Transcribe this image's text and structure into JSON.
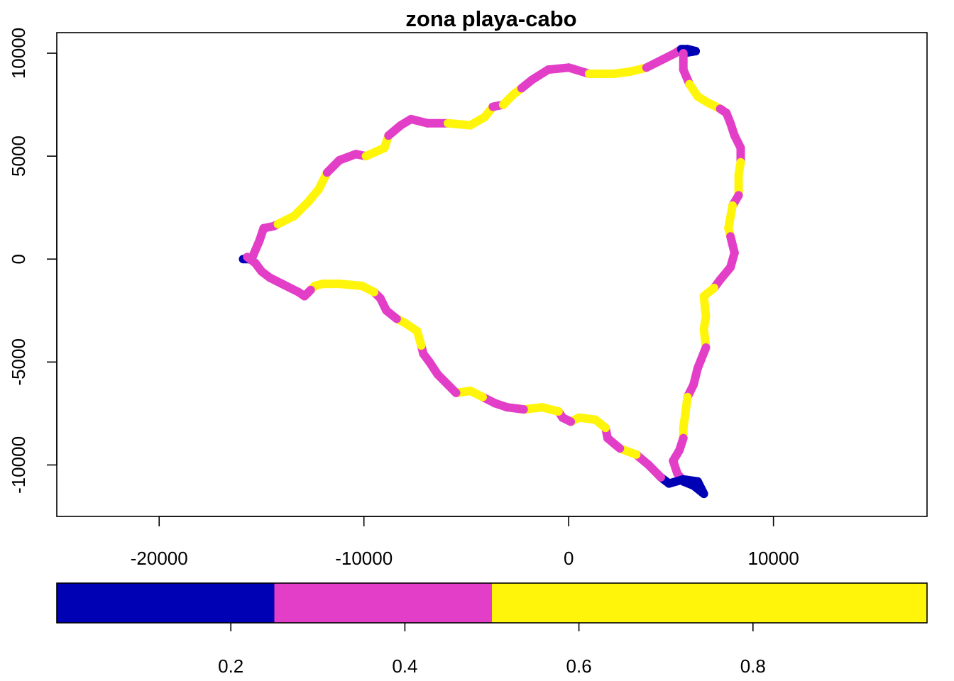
{
  "chart_data": {
    "type": "line",
    "title": "zona playa-cabo",
    "xlabel": "",
    "ylabel": "",
    "xlim": [
      -25000,
      17500
    ],
    "ylim": [
      -12500,
      11000
    ],
    "x_ticks": [
      -20000,
      -10000,
      0,
      10000
    ],
    "x_tick_labels": [
      "-20000",
      "-10000",
      "0",
      "10000"
    ],
    "y_ticks": [
      -10000,
      -5000,
      0,
      5000,
      10000
    ],
    "y_tick_labels": [
      "-10000",
      "-5000",
      "0",
      "5000",
      "10000"
    ],
    "grid": false,
    "series": [
      {
        "color_value_scale": [
          0,
          1
        ],
        "points": [
          [
            -15900,
            0,
            0.2
          ],
          [
            -15500,
            0,
            0.2
          ],
          [
            -15400,
            200,
            0.4
          ],
          [
            -15100,
            900,
            0.4
          ],
          [
            -14900,
            1500,
            0.4
          ],
          [
            -14400,
            1600,
            0.4
          ],
          [
            -14200,
            1700,
            0.7
          ],
          [
            -13400,
            2100,
            0.7
          ],
          [
            -12700,
            2800,
            0.7
          ],
          [
            -12200,
            3400,
            0.7
          ],
          [
            -11800,
            4200,
            0.4
          ],
          [
            -11200,
            4800,
            0.4
          ],
          [
            -10400,
            5100,
            0.4
          ],
          [
            -9900,
            5000,
            0.7
          ],
          [
            -9000,
            5400,
            0.7
          ],
          [
            -8800,
            6000,
            0.4
          ],
          [
            -8200,
            6500,
            0.4
          ],
          [
            -7700,
            6800,
            0.4
          ],
          [
            -6900,
            6600,
            0.4
          ],
          [
            -5900,
            6600,
            0.7
          ],
          [
            -4800,
            6500,
            0.7
          ],
          [
            -4100,
            6900,
            0.7
          ],
          [
            -3700,
            7400,
            0.4
          ],
          [
            -3200,
            7500,
            0.7
          ],
          [
            -2700,
            8000,
            0.7
          ],
          [
            -2300,
            8300,
            0.4
          ],
          [
            -1800,
            8700,
            0.4
          ],
          [
            -1000,
            9200,
            0.4
          ],
          [
            0,
            9300,
            0.4
          ],
          [
            1000,
            9000,
            0.7
          ],
          [
            2200,
            9000,
            0.7
          ],
          [
            3000,
            9100,
            0.7
          ],
          [
            3800,
            9300,
            0.4
          ],
          [
            4600,
            9700,
            0.4
          ],
          [
            5200,
            10000,
            0.4
          ],
          [
            5500,
            10200,
            0.2
          ],
          [
            5800,
            10200,
            0.2
          ],
          [
            6200,
            10100,
            0.2
          ],
          [
            5600,
            10000,
            0.4
          ],
          [
            5600,
            9200,
            0.4
          ],
          [
            5900,
            8500,
            0.7
          ],
          [
            6300,
            7900,
            0.7
          ],
          [
            6800,
            7600,
            0.7
          ],
          [
            7400,
            7300,
            0.4
          ],
          [
            7700,
            7100,
            0.4
          ],
          [
            7900,
            6600,
            0.4
          ],
          [
            8100,
            6000,
            0.4
          ],
          [
            8400,
            5400,
            0.4
          ],
          [
            8400,
            4700,
            0.7
          ],
          [
            8300,
            4100,
            0.7
          ],
          [
            8300,
            3100,
            0.4
          ],
          [
            8000,
            2600,
            0.7
          ],
          [
            7800,
            1500,
            0.7
          ],
          [
            7900,
            1100,
            0.4
          ],
          [
            8100,
            300,
            0.4
          ],
          [
            7900,
            -400,
            0.4
          ],
          [
            7400,
            -1000,
            0.4
          ],
          [
            7100,
            -1400,
            0.7
          ],
          [
            6600,
            -1800,
            0.7
          ],
          [
            6700,
            -2800,
            0.7
          ],
          [
            6600,
            -3400,
            0.7
          ],
          [
            6700,
            -4300,
            0.4
          ],
          [
            6300,
            -5300,
            0.4
          ],
          [
            6100,
            -6100,
            0.4
          ],
          [
            5800,
            -6700,
            0.7
          ],
          [
            5700,
            -7500,
            0.7
          ],
          [
            5600,
            -8200,
            0.7
          ],
          [
            5600,
            -8700,
            0.4
          ],
          [
            5400,
            -9300,
            0.4
          ],
          [
            5100,
            -9800,
            0.4
          ],
          [
            5300,
            -10400,
            0.4
          ],
          [
            5600,
            -10800,
            0.2
          ],
          [
            6100,
            -11000,
            0.2
          ],
          [
            6600,
            -11400,
            0.2
          ],
          [
            6300,
            -10800,
            0.2
          ],
          [
            5600,
            -10700,
            0.2
          ],
          [
            4900,
            -10900,
            0.2
          ],
          [
            4500,
            -10600,
            0.4
          ],
          [
            3900,
            -10000,
            0.4
          ],
          [
            3300,
            -9500,
            0.7
          ],
          [
            2500,
            -9200,
            0.4
          ],
          [
            1900,
            -8700,
            0.4
          ],
          [
            1800,
            -8200,
            0.7
          ],
          [
            1300,
            -7800,
            0.7
          ],
          [
            500,
            -7700,
            0.7
          ],
          [
            100,
            -7900,
            0.4
          ],
          [
            -300,
            -7700,
            0.4
          ],
          [
            -500,
            -7400,
            0.7
          ],
          [
            -1300,
            -7200,
            0.7
          ],
          [
            -2200,
            -7300,
            0.4
          ],
          [
            -3000,
            -7200,
            0.4
          ],
          [
            -3600,
            -7000,
            0.4
          ],
          [
            -4200,
            -6700,
            0.7
          ],
          [
            -4800,
            -6400,
            0.7
          ],
          [
            -5500,
            -6500,
            0.4
          ],
          [
            -5900,
            -6100,
            0.4
          ],
          [
            -6400,
            -5600,
            0.4
          ],
          [
            -6800,
            -5000,
            0.4
          ],
          [
            -7100,
            -4600,
            0.4
          ],
          [
            -7200,
            -4200,
            0.7
          ],
          [
            -7400,
            -3500,
            0.7
          ],
          [
            -8000,
            -3100,
            0.7
          ],
          [
            -8400,
            -2900,
            0.4
          ],
          [
            -8900,
            -2500,
            0.4
          ],
          [
            -9200,
            -1900,
            0.4
          ],
          [
            -9500,
            -1600,
            0.7
          ],
          [
            -10100,
            -1300,
            0.7
          ],
          [
            -11200,
            -1200,
            0.7
          ],
          [
            -12000,
            -1200,
            0.7
          ],
          [
            -12400,
            -1300,
            0.7
          ],
          [
            -12600,
            -1500,
            0.4
          ],
          [
            -12900,
            -1800,
            0.4
          ],
          [
            -13200,
            -1600,
            0.4
          ],
          [
            -14000,
            -1200,
            0.4
          ],
          [
            -14600,
            -900,
            0.4
          ],
          [
            -15000,
            -600,
            0.4
          ],
          [
            -15300,
            -200,
            0.4
          ],
          [
            -15700,
            100,
            0.2
          ]
        ]
      }
    ],
    "legend": {
      "placement": "bottom",
      "type": "colorbar",
      "range": [
        0,
        1
      ],
      "breaks": [
        0,
        0.25,
        0.5,
        1
      ],
      "colors": [
        "#0000b4",
        "#e33ec7",
        "#fff50a"
      ],
      "tick_values": [
        0.2,
        0.4,
        0.6,
        0.8
      ],
      "tick_labels": [
        "0.2",
        "0.4",
        "0.6",
        "0.8"
      ]
    }
  }
}
